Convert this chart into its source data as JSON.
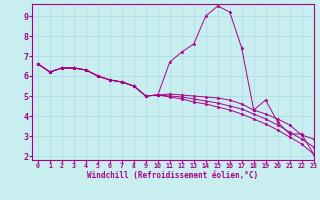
{
  "xlabel": "Windchill (Refroidissement éolien,°C)",
  "bg_color": "#c8eef0",
  "grid_color": "#a8dce0",
  "line_color": "#aa0088",
  "xlim": [
    -0.5,
    23
  ],
  "ylim": [
    1.8,
    9.6
  ],
  "xticks": [
    0,
    1,
    2,
    3,
    4,
    5,
    6,
    7,
    8,
    9,
    10,
    11,
    12,
    13,
    14,
    15,
    16,
    17,
    18,
    19,
    20,
    21,
    22,
    23
  ],
  "yticks": [
    2,
    3,
    4,
    5,
    6,
    7,
    8,
    9
  ],
  "lines": [
    {
      "x": [
        0,
        1,
        2,
        3,
        4,
        5,
        6,
        7,
        8,
        9,
        10,
        11,
        12,
        13,
        14,
        15,
        16,
        17,
        18,
        19,
        20,
        21,
        22,
        23
      ],
      "y": [
        6.6,
        6.2,
        6.4,
        6.4,
        6.3,
        6.0,
        5.8,
        5.7,
        5.5,
        5.0,
        5.05,
        6.7,
        7.2,
        7.6,
        9.0,
        9.5,
        9.2,
        7.4,
        4.3,
        4.8,
        3.7,
        3.1,
        3.1,
        2.1
      ]
    },
    {
      "x": [
        0,
        1,
        2,
        3,
        4,
        5,
        6,
        7,
        8,
        9,
        10,
        11,
        12,
        13,
        14,
        15,
        16,
        17,
        18,
        19,
        20,
        21,
        22,
        23
      ],
      "y": [
        6.6,
        6.2,
        6.4,
        6.4,
        6.3,
        6.0,
        5.8,
        5.7,
        5.5,
        5.0,
        5.05,
        5.1,
        5.05,
        5.0,
        4.95,
        4.9,
        4.8,
        4.6,
        4.3,
        4.1,
        3.85,
        3.55,
        3.05,
        2.85
      ]
    },
    {
      "x": [
        0,
        1,
        2,
        3,
        4,
        5,
        6,
        7,
        8,
        9,
        10,
        11,
        12,
        13,
        14,
        15,
        16,
        17,
        18,
        19,
        20,
        21,
        22,
        23
      ],
      "y": [
        6.6,
        6.2,
        6.4,
        6.4,
        6.3,
        6.0,
        5.8,
        5.7,
        5.5,
        5.0,
        5.05,
        5.0,
        4.95,
        4.85,
        4.75,
        4.65,
        4.5,
        4.35,
        4.1,
        3.85,
        3.55,
        3.2,
        2.85,
        2.45
      ]
    },
    {
      "x": [
        0,
        1,
        2,
        3,
        4,
        5,
        6,
        7,
        8,
        9,
        10,
        11,
        12,
        13,
        14,
        15,
        16,
        17,
        18,
        19,
        20,
        21,
        22,
        23
      ],
      "y": [
        6.6,
        6.2,
        6.4,
        6.4,
        6.3,
        6.0,
        5.8,
        5.7,
        5.5,
        5.0,
        5.05,
        4.95,
        4.85,
        4.7,
        4.6,
        4.45,
        4.3,
        4.1,
        3.85,
        3.6,
        3.3,
        2.95,
        2.6,
        2.1
      ]
    }
  ]
}
